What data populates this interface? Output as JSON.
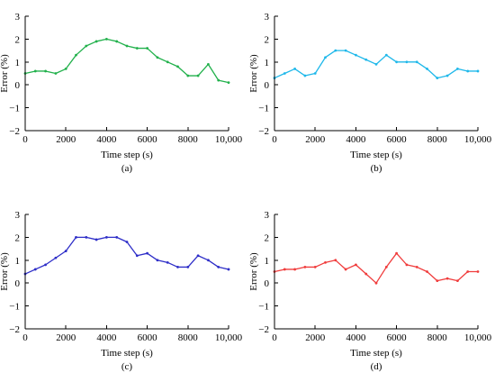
{
  "chart_data": [
    {
      "id": "a",
      "type": "line",
      "caption": "(a)",
      "xlabel": "Time step (s)",
      "ylabel": "Error (%)",
      "xlim": [
        0,
        10000
      ],
      "ylim": [
        -2,
        3
      ],
      "xticks": [
        0,
        2000,
        4000,
        6000,
        8000,
        10000
      ],
      "xtick_labels": [
        "0",
        "2000",
        "4000",
        "6000",
        "8000",
        "10,000"
      ],
      "yticks": [
        -2,
        -1,
        0,
        1,
        2,
        3
      ],
      "ytick_labels": [
        "−2",
        "−1",
        "0",
        "1",
        "2",
        "3"
      ],
      "color": "#22b14c",
      "series": [
        {
          "x": [
            0,
            500,
            1000,
            1500,
            2000,
            2500,
            3000,
            3500,
            4000,
            4500,
            5000,
            5500,
            6000,
            6500,
            7000,
            7500,
            8000,
            8500,
            9000,
            9500,
            10000
          ],
          "values": [
            0.5,
            0.6,
            0.6,
            0.5,
            0.7,
            1.3,
            1.7,
            1.9,
            2.0,
            1.9,
            1.7,
            1.6,
            1.6,
            1.2,
            1.0,
            0.8,
            0.4,
            0.4,
            0.9,
            0.2,
            0.1
          ]
        }
      ]
    },
    {
      "id": "b",
      "type": "line",
      "caption": "(b)",
      "xlabel": "Time step (s)",
      "ylabel": "Error (%)",
      "xlim": [
        0,
        10000
      ],
      "ylim": [
        -2,
        3
      ],
      "xticks": [
        0,
        2000,
        4000,
        6000,
        8000,
        10000
      ],
      "xtick_labels": [
        "0",
        "2000",
        "4000",
        "6000",
        "8000",
        "10,000"
      ],
      "yticks": [
        -2,
        -1,
        0,
        1,
        2,
        3
      ],
      "ytick_labels": [
        "−2",
        "−1",
        "0",
        "1",
        "2",
        "3"
      ],
      "color": "#1fb8ea",
      "series": [
        {
          "x": [
            0,
            500,
            1000,
            1500,
            2000,
            2500,
            3000,
            3500,
            4000,
            4500,
            5000,
            5500,
            6000,
            6500,
            7000,
            7500,
            8000,
            8500,
            9000,
            9500,
            10000
          ],
          "values": [
            0.3,
            0.5,
            0.7,
            0.4,
            0.5,
            1.2,
            1.5,
            1.5,
            1.3,
            1.1,
            0.9,
            1.3,
            1.0,
            1.0,
            1.0,
            0.7,
            0.3,
            0.4,
            0.7,
            0.6,
            0.6
          ]
        }
      ]
    },
    {
      "id": "c",
      "type": "line",
      "caption": "(c)",
      "xlabel": "Time step (s)",
      "ylabel": "Error (%)",
      "xlim": [
        0,
        10000
      ],
      "ylim": [
        -2,
        3
      ],
      "xticks": [
        0,
        2000,
        4000,
        6000,
        8000,
        10000
      ],
      "xtick_labels": [
        "0",
        "2000",
        "4000",
        "6000",
        "8000",
        "10,000"
      ],
      "yticks": [
        -2,
        -1,
        0,
        1,
        2,
        3
      ],
      "ytick_labels": [
        "−2",
        "−1",
        "0",
        "1",
        "2",
        "3"
      ],
      "color": "#2e2ec8",
      "series": [
        {
          "x": [
            0,
            500,
            1000,
            1500,
            2000,
            2500,
            3000,
            3500,
            4000,
            4500,
            5000,
            5500,
            6000,
            6500,
            7000,
            7500,
            8000,
            8500,
            9000,
            9500,
            10000
          ],
          "values": [
            0.4,
            0.6,
            0.8,
            1.1,
            1.4,
            2.0,
            2.0,
            1.9,
            2.0,
            2.0,
            1.8,
            1.2,
            1.3,
            1.0,
            0.9,
            0.7,
            0.7,
            1.2,
            1.0,
            0.7,
            0.6
          ]
        }
      ]
    },
    {
      "id": "d",
      "type": "line",
      "caption": "(d)",
      "xlabel": "Time step (s)",
      "ylabel": "Error (%)",
      "xlim": [
        0,
        10000
      ],
      "ylim": [
        -2,
        3
      ],
      "xticks": [
        0,
        2000,
        4000,
        6000,
        8000,
        10000
      ],
      "xtick_labels": [
        "0",
        "2000",
        "4000",
        "6000",
        "8000",
        "10,000"
      ],
      "yticks": [
        -2,
        -1,
        0,
        1,
        2,
        3
      ],
      "ytick_labels": [
        "−2",
        "−1",
        "0",
        "1",
        "2",
        "3"
      ],
      "color": "#f03c3c",
      "series": [
        {
          "x": [
            0,
            500,
            1000,
            1500,
            2000,
            2500,
            3000,
            3500,
            4000,
            4500,
            5000,
            5500,
            6000,
            6500,
            7000,
            7500,
            8000,
            8500,
            9000,
            9500,
            10000
          ],
          "values": [
            0.5,
            0.6,
            0.6,
            0.7,
            0.7,
            0.9,
            1.0,
            0.6,
            0.8,
            0.4,
            0.0,
            0.7,
            1.3,
            0.8,
            0.7,
            0.5,
            0.1,
            0.2,
            0.1,
            0.5,
            0.5
          ]
        }
      ]
    }
  ]
}
